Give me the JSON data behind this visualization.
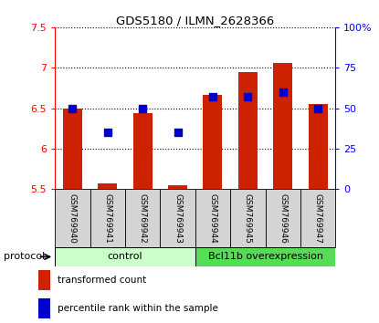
{
  "title": "GDS5180 / ILMN_2628366",
  "samples": [
    "GSM769940",
    "GSM769941",
    "GSM769942",
    "GSM769943",
    "GSM769944",
    "GSM769945",
    "GSM769946",
    "GSM769947"
  ],
  "transformed_counts": [
    6.5,
    5.57,
    6.44,
    5.55,
    6.67,
    6.95,
    7.06,
    6.55
  ],
  "percentile_ranks": [
    50,
    35,
    50,
    35,
    57,
    57,
    60,
    50
  ],
  "ylim_left": [
    5.5,
    7.5
  ],
  "ylim_right": [
    0,
    100
  ],
  "yticks_left": [
    5.5,
    6.0,
    6.5,
    7.0,
    7.5
  ],
  "yticks_right": [
    0,
    25,
    50,
    75,
    100
  ],
  "ytick_labels_left": [
    "5.5",
    "6",
    "6.5",
    "7",
    "7.5"
  ],
  "ytick_labels_right": [
    "0",
    "25",
    "50",
    "75",
    "100%"
  ],
  "bar_color": "#cc2200",
  "dot_color": "#0000cc",
  "bar_bottom": 5.5,
  "control_label": "control",
  "overexpression_label": "Bcl11b overexpression",
  "control_color": "#ccffcc",
  "overexpression_color": "#55dd55",
  "protocol_label": "protocol",
  "legend_bar_label": "transformed count",
  "legend_dot_label": "percentile rank within the sample",
  "bar_width": 0.55,
  "dot_size": 28,
  "n_control": 4,
  "n_over": 4
}
